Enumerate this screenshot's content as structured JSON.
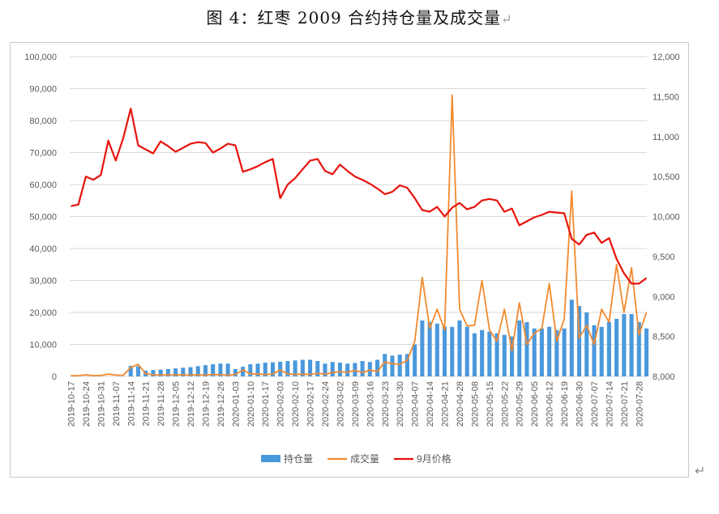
{
  "document": {
    "title": "图 4：红枣 2009 合约持仓量及成交量",
    "return_mark": "↵"
  },
  "chart_data": {
    "type": "bar+line",
    "title": "",
    "x": [
      "2019-10-17",
      "",
      "2019-10-24",
      "",
      "2019-10-31",
      "",
      "2019-11-07",
      "",
      "2019-11-14",
      "",
      "2019-11-21",
      "",
      "2019-11-28",
      "",
      "2019-12-05",
      "",
      "2019-12-12",
      "",
      "2019-12-19",
      "",
      "2019-12-26",
      "",
      "2020-01-03",
      "",
      "2020-01-10",
      "",
      "2020-01-17",
      "",
      "2020-02-03",
      "",
      "2020-02-10",
      "",
      "2020-02-17",
      "",
      "2020-02-24",
      "",
      "2020-03-02",
      "",
      "2020-03-09",
      "",
      "2020-03-16",
      "",
      "2020-03-23",
      "",
      "2020-03-30",
      "",
      "2020-04-07",
      "",
      "2020-04-14",
      "",
      "2020-04-21",
      "",
      "2020-04-28",
      "",
      "2020-05-08",
      "",
      "2020-05-15",
      "",
      "2020-05-22",
      "",
      "2020-05-29",
      "",
      "2020-06-05",
      "",
      "2020-06-12",
      "",
      "2020-06-19",
      "",
      "2020-06-30",
      "",
      "2020-07-07",
      "",
      "2020-07-14",
      "",
      "2020-07-21",
      "",
      "2020-07-28",
      ""
    ],
    "y_left": {
      "min": 0,
      "max": 100000,
      "step": 10000,
      "tick_labels": [
        "0",
        "10,000",
        "20,000",
        "30,000",
        "40,000",
        "50,000",
        "60,000",
        "70,000",
        "80,000",
        "90,000",
        "100,000"
      ]
    },
    "y_right": {
      "min": 8000,
      "max": 12000,
      "step": 500,
      "tick_labels": [
        "8,000",
        "8,500",
        "9,000",
        "9,500",
        "10,000",
        "10,500",
        "11,000",
        "11,500",
        "12,000"
      ]
    },
    "grid": true,
    "legend_position": "bottom",
    "series": [
      {
        "name": "持仓量",
        "type": "bar",
        "axis": "left",
        "color": "#4a98dc",
        "values": [
          0,
          0,
          0,
          0,
          0,
          0,
          0,
          0,
          3300,
          3200,
          1800,
          2000,
          2100,
          2300,
          2500,
          2700,
          2900,
          3200,
          3500,
          3800,
          4000,
          4000,
          2300,
          3000,
          3800,
          4000,
          4300,
          4400,
          4600,
          4800,
          5000,
          5200,
          5200,
          4800,
          4000,
          4500,
          4300,
          4000,
          4200,
          4800,
          4500,
          5200,
          7000,
          6500,
          6800,
          7000,
          10000,
          17500,
          17000,
          16500,
          15500,
          15500,
          17500,
          15500,
          13500,
          14500,
          14000,
          13500,
          13000,
          12500,
          17500,
          17000,
          15000,
          15000,
          15500,
          14500,
          15000,
          24000,
          22000,
          20000,
          16000,
          15500,
          17000,
          18000,
          19500,
          19500,
          17000,
          15000
        ]
      },
      {
        "name": "成交量",
        "type": "line",
        "axis": "left",
        "color": "#f28a2e",
        "values": [
          200,
          200,
          500,
          200,
          300,
          700,
          400,
          300,
          2800,
          3800,
          800,
          500,
          400,
          500,
          400,
          500,
          400,
          500,
          400,
          600,
          500,
          400,
          600,
          2000,
          800,
          700,
          600,
          700,
          2000,
          800,
          600,
          700,
          600,
          1000,
          700,
          1200,
          1500,
          1300,
          1900,
          1200,
          2000,
          1500,
          4500,
          4000,
          3800,
          5000,
          11000,
          31000,
          15000,
          21000,
          14500,
          88000,
          21000,
          15800,
          16000,
          30000,
          14500,
          11000,
          21000,
          8000,
          23000,
          10000,
          13500,
          15000,
          29000,
          11000,
          18000,
          58000,
          12000,
          16000,
          10000,
          21000,
          17000,
          35000,
          20000,
          34000,
          13000,
          20000
        ]
      },
      {
        "name": "9月价格",
        "type": "line",
        "axis": "right",
        "color": "#e8120c",
        "values": [
          10130,
          10150,
          10500,
          10460,
          10520,
          10950,
          10700,
          10980,
          11350,
          10890,
          10840,
          10790,
          10940,
          10880,
          10810,
          10860,
          10910,
          10930,
          10920,
          10800,
          10850,
          10910,
          10890,
          10560,
          10590,
          10630,
          10680,
          10720,
          10230,
          10400,
          10480,
          10590,
          10700,
          10720,
          10570,
          10530,
          10650,
          10570,
          10500,
          10460,
          10410,
          10350,
          10280,
          10310,
          10390,
          10360,
          10230,
          10080,
          10060,
          10120,
          10000,
          10110,
          10170,
          10090,
          10120,
          10200,
          10220,
          10200,
          10060,
          10100,
          9890,
          9940,
          9990,
          10020,
          10060,
          10050,
          10040,
          9720,
          9650,
          9770,
          9800,
          9670,
          9730,
          9470,
          9290,
          9160,
          9160,
          9230
        ]
      }
    ]
  }
}
